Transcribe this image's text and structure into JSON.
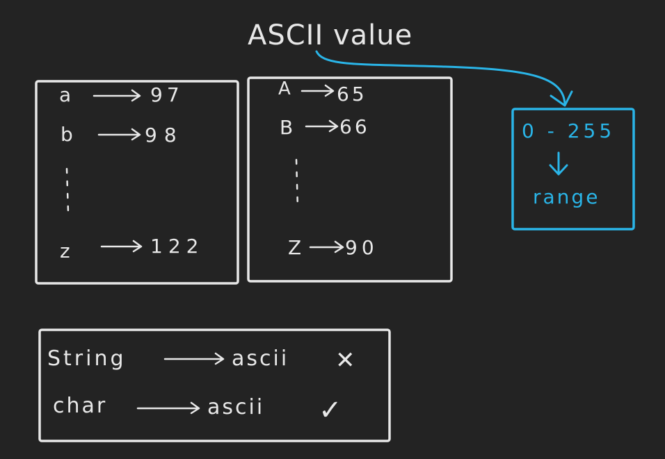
{
  "title": "ASCII value",
  "lowercase_box": {
    "rows": [
      {
        "char": "a",
        "value": "97"
      },
      {
        "char": "b",
        "value": "98"
      },
      {
        "char": "z",
        "value": "122"
      }
    ]
  },
  "uppercase_box": {
    "rows": [
      {
        "char": "A",
        "value": "65"
      },
      {
        "char": "B",
        "value": "66"
      },
      {
        "char": "Z",
        "value": "90"
      }
    ]
  },
  "range_box": {
    "value": "0 - 255",
    "label": "range"
  },
  "conversion_box": {
    "rows": [
      {
        "from": "String",
        "to": "ascii",
        "mark": "✕",
        "mark_name": "cross-icon"
      },
      {
        "from": "char",
        "to": "ascii",
        "mark": "✓",
        "mark_name": "check-icon"
      }
    ]
  },
  "colors": {
    "background": "#232323",
    "ink": "#e8e8e8",
    "accent": "#2ab5e8"
  }
}
